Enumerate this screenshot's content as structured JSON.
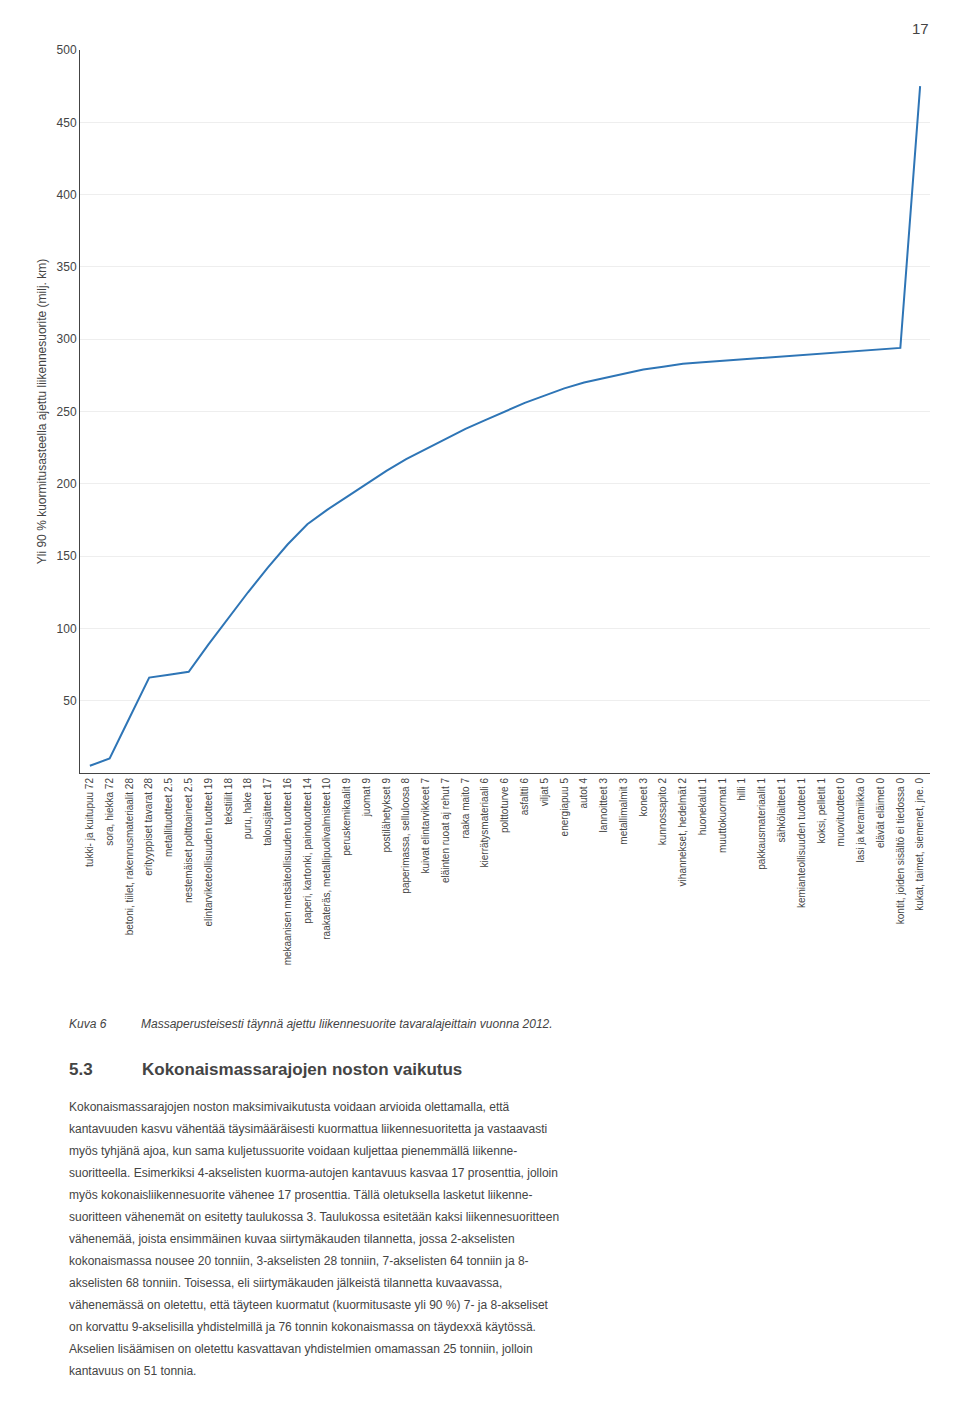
{
  "chart_data": {
    "type": "line",
    "ylabel": "Yli 90 % kuormitusasteella ajettu liikennesuorite (milj. km)",
    "categories": [
      "tukki- ja kuitupuu 72",
      "sora, hiekka 72",
      "betoni, tiilet, rakennusmateriaalit 28",
      "erityyppiset tavarat 28",
      "metallituotteet 2.5",
      "nestemäiset polttoaineet 2.5",
      "elintarviketeollisuuden tuotteet 19",
      "tekstiilit 18",
      "puru, hake 18",
      "talousjätteet 17",
      "mekaanisen metsäteollisuuden tuotteet 16",
      "paperi, kartonki, painotuotteet 14",
      "raakateräs, metallipuolivalmisteet 10",
      "peruskemikaalit 9",
      "juomat 9",
      "postilähetykset 9",
      "paperimassa, selluloosa 8",
      "kuivat elintarvikkeet 7",
      "eläinten ruoat aj rehut 7",
      "raaka maito 7",
      "kierrätysmateriaali 6",
      "polttoturve 6",
      "asfaltti 6",
      "viljat 5",
      "energiapuu 5",
      "autot 4",
      "lannoitteet 3",
      "metallimalmit 3",
      "koneet 3",
      "kunnossapito 2",
      "vihannekset, hedelmät 2",
      "huonekalut 1",
      "muuttokuormat 1",
      "hilli 1",
      "pakkausmateriaalit 1",
      "sähkölaitteet 1",
      "kemianteollisuuden tuotteet 1",
      "koksi, pelletit 1",
      "muovituotteet 0",
      "lasi ja keramiikka 0",
      "elävät eläimet 0",
      "kontit, joiden sisältö ei tiedossa 0",
      "kukat, taimet, siemenet, jne. 0"
    ],
    "values": [
      5,
      10,
      38,
      66,
      68,
      70,
      89,
      107,
      125,
      142,
      158,
      172,
      182,
      191,
      200,
      209,
      217,
      224,
      231,
      238,
      244,
      250,
      256,
      261,
      266,
      270,
      273,
      276,
      279,
      281,
      283,
      284,
      285,
      286,
      287,
      288,
      289,
      290,
      291,
      292,
      293,
      294,
      475
    ],
    "color": "#2E75B6",
    "ylim": [
      0,
      500
    ],
    "yticks": [
      50,
      100,
      150,
      200,
      250,
      300,
      350,
      400,
      450,
      500
    ],
    "grid": true,
    "annotations": [
      "17",
      "Kuva 6",
      "Massaperusteisesti täynnä ajettu liikennesuorite tavaralajeittain vuonna 2012.",
      "5.3",
      "Kokonaismassarajojen noston vaikutus",
      "Kokonaismassarajojen noston maksimivaikutusta voidaan arvioida olettamalla, että",
      "kantavuuden kasvu vähentää täysimääräisesti kuormattua liikennesuoritetta ja vastaavasti",
      "myös tyhjänä ajoa, kun sama kuljetussuorite voidaan kuljettaa pienemmällä liikenne-",
      "suoritteella. Esimerkiksi 4-akselisten kuorma-autojen kantavuus kasvaa 17 prosenttia, jolloin",
      "myös kokonaisliikennesuorite vähenee 17 prosenttia. Tällä oletuksella lasketut liikenne-",
      "suoritteen vähenemät on esitetty taulukossa 3. Taulukossa esitetään kaksi liikennesuoritteen",
      "vähenemää, joista ensimmäinen kuvaa siirtymäkauden tilannetta, jossa 2-akselisten",
      "kokonaismassa nousee 20 tonniin, 3-akselisten 28 tonniin, 7-akselisten 64 tonniin ja 8-",
      "akselisten 68 tonniin. Toisessa, eli siirtymäkauden jälkeistä tilannetta kuvaavassa,",
      "vähenemässä on oletettu, että täyteen kuormatut (kuormitusaste yli 90 %) 7- ja 8-akseliset",
      "on korvattu 9-akselisilla yhdistelmillä ja 76 tonnin kokonaismassa on täydexxä käytössä.",
      "Akselien lisäämisen on oletettu kasvattavan yhdistelmien omamassan 25 tonniin, jolloin",
      "kantavuus on 51 tonnia."
    ]
  }
}
